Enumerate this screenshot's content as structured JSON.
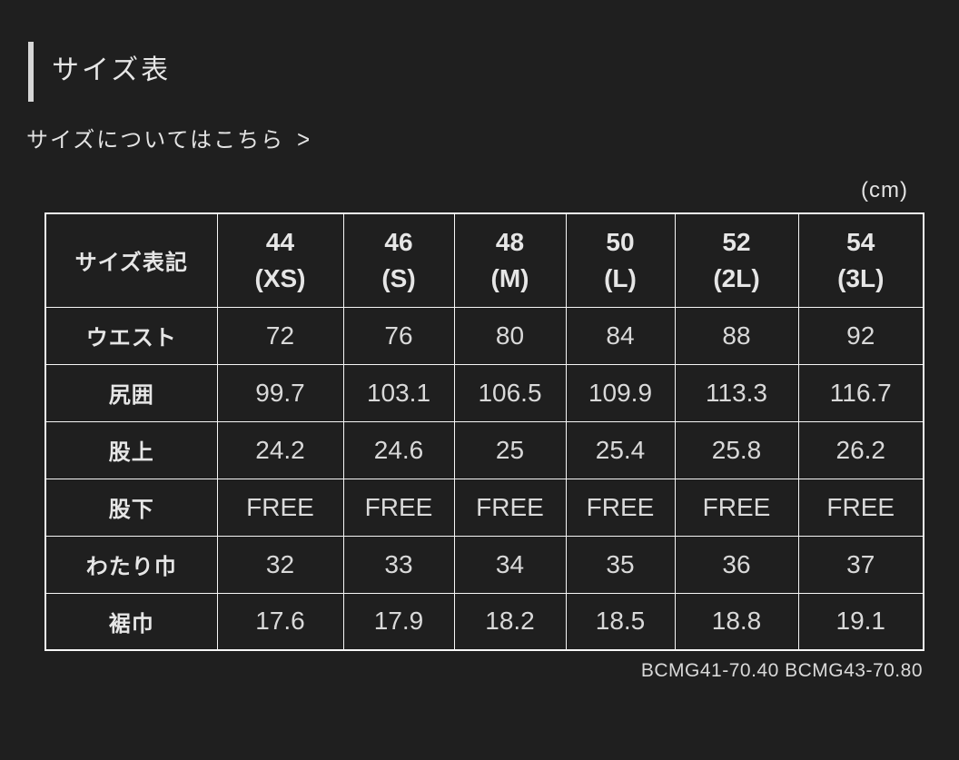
{
  "theme": {
    "background": "#1f1f1f",
    "text": "#e3e3e3",
    "border": "#f6f6f6",
    "accent_bar": "#d6d6d6"
  },
  "header": {
    "title": "サイズ表",
    "link_label": "サイズについてはこちら",
    "link_chevron": ">",
    "unit_label": "(cm)"
  },
  "table": {
    "corner_label": "サイズ表記",
    "columns": [
      {
        "size": "44",
        "code": "(XS)"
      },
      {
        "size": "46",
        "code": "(S)"
      },
      {
        "size": "48",
        "code": "(M)"
      },
      {
        "size": "50",
        "code": "(L)"
      },
      {
        "size": "52",
        "code": "(2L)"
      },
      {
        "size": "54",
        "code": "(3L)"
      }
    ],
    "rows": [
      {
        "label": "ウエスト",
        "values": [
          "72",
          "76",
          "80",
          "84",
          "88",
          "92"
        ]
      },
      {
        "label": "尻囲",
        "values": [
          "99.7",
          "103.1",
          "106.5",
          "109.9",
          "113.3",
          "116.7"
        ]
      },
      {
        "label": "股上",
        "values": [
          "24.2",
          "24.6",
          "25",
          "25.4",
          "25.8",
          "26.2"
        ]
      },
      {
        "label": "股下",
        "values": [
          "FREE",
          "FREE",
          "FREE",
          "FREE",
          "FREE",
          "FREE"
        ]
      },
      {
        "label": "わたり巾",
        "values": [
          "32",
          "33",
          "34",
          "35",
          "36",
          "37"
        ]
      },
      {
        "label": "裾巾",
        "values": [
          "17.6",
          "17.9",
          "18.2",
          "18.5",
          "18.8",
          "19.1"
        ]
      }
    ]
  },
  "footer": {
    "product_codes": "BCMG41-70.40 BCMG43-70.80"
  }
}
